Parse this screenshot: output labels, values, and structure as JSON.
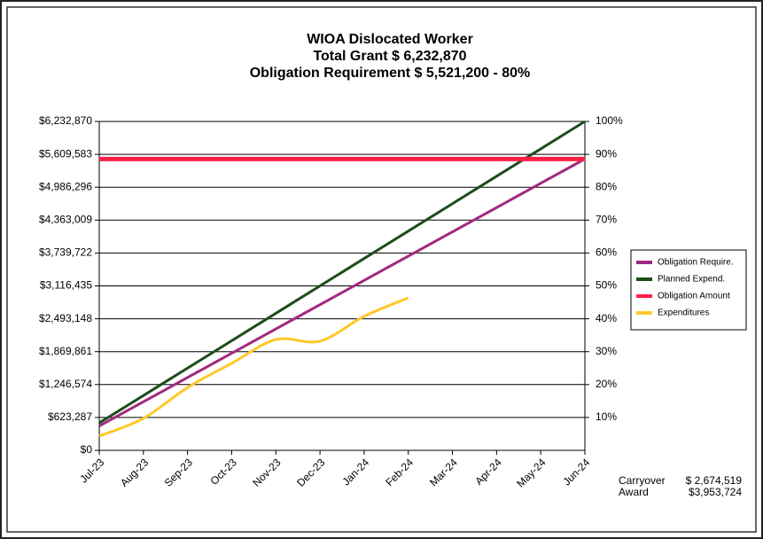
{
  "chart_data": {
    "type": "line",
    "title": [
      "WIOA Dislocated Worker",
      "Total Grant  $  6,232,870",
      "Obligation Requirement  $ 5,521,200 -  80%"
    ],
    "categories": [
      "Jul-23",
      "Aug-23",
      "Sep-23",
      "Oct-23",
      "Nov-23",
      "Dec-23",
      "Jan-24",
      "Feb-24",
      "Mar-24",
      "Apr-24",
      "May-24",
      "Jun-24"
    ],
    "series": [
      {
        "name": "Obligation Require.",
        "color": "#a3287f",
        "values": [
          460100,
          920200,
          1380300,
          1840400,
          2300500,
          2760600,
          3220700,
          3680800,
          4140900,
          4601000,
          5061100,
          5521200
        ]
      },
      {
        "name": "Planned Expend.",
        "color": "#1b4d1b",
        "values": [
          519406,
          1038812,
          1558218,
          2077624,
          2597030,
          3116436,
          3635842,
          4155248,
          4674654,
          5194060,
          5713466,
          6232870
        ]
      },
      {
        "name": "Obligation Amount",
        "color": "#ff1f44",
        "values": [
          5521200,
          5521200,
          5521200,
          5521200,
          5521200,
          5521200,
          5521200,
          5521200,
          5521200,
          5521200,
          5521200,
          5521200
        ]
      },
      {
        "name": "Expenditures",
        "color": "#ffc82a",
        "values": [
          270000,
          605000,
          1190000,
          1650000,
          2100000,
          2070000,
          2540000,
          2890000,
          null,
          null,
          null,
          null
        ]
      }
    ],
    "ylim": [
      0,
      6232870
    ],
    "yticks": [
      {
        "value": 0,
        "label": "$0"
      },
      {
        "value": 623287,
        "label": "$623,287"
      },
      {
        "value": 1246574,
        "label": "$1,246,574"
      },
      {
        "value": 1869861,
        "label": "$1,869,861"
      },
      {
        "value": 2493148,
        "label": "$2,493,148"
      },
      {
        "value": 3116435,
        "label": "$3,116,435"
      },
      {
        "value": 3739722,
        "label": "$3,739,722"
      },
      {
        "value": 4363009,
        "label": "$4,363,009"
      },
      {
        "value": 4986296,
        "label": "$4,986,296"
      },
      {
        "value": 5609583,
        "label": "$5,609,583"
      },
      {
        "value": 6232870,
        "label": "$6,232,870"
      }
    ],
    "y2lim": [
      0,
      100
    ],
    "y2ticks": [
      {
        "value": 10,
        "label": "10%"
      },
      {
        "value": 20,
        "label": "20%"
      },
      {
        "value": 30,
        "label": "30%"
      },
      {
        "value": 40,
        "label": "40%"
      },
      {
        "value": 50,
        "label": "50%"
      },
      {
        "value": 60,
        "label": "60%"
      },
      {
        "value": 70,
        "label": "70%"
      },
      {
        "value": 80,
        "label": "80%"
      },
      {
        "value": 90,
        "label": "90%"
      },
      {
        "value": 100,
        "label": "100%"
      }
    ],
    "grid": true,
    "legend": "right",
    "annotations": [
      {
        "label": "Carryover",
        "value": "$ 2,674,519"
      },
      {
        "label": "Award",
        "value": "$3,953,724"
      }
    ]
  }
}
